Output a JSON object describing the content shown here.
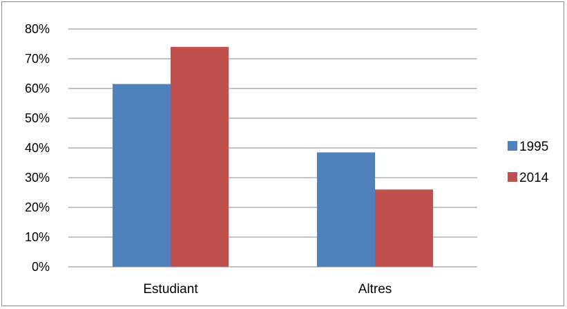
{
  "chart_data": {
    "type": "bar",
    "categories": [
      "Estudiant",
      "Altres"
    ],
    "series": [
      {
        "name": "1995",
        "values": [
          61.5,
          38.5
        ],
        "color": "#4f81bd"
      },
      {
        "name": "2014",
        "values": [
          74,
          26
        ],
        "color": "#c0504d"
      }
    ],
    "y_ticks": [
      "0%",
      "10%",
      "20%",
      "30%",
      "40%",
      "50%",
      "60%",
      "70%",
      "80%"
    ],
    "ylim": [
      0,
      80
    ],
    "y_unit": "%",
    "grid": true,
    "legend_position": "right",
    "title": "",
    "xlabel": "",
    "ylabel": ""
  }
}
